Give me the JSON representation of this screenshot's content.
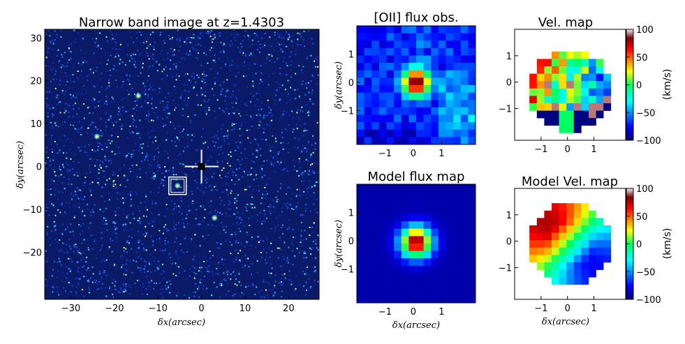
{
  "chart_data": [
    {
      "type": "heatmap",
      "title": "Narrow band image at z=1.4303",
      "xlabel": "δx(arcsec)",
      "ylabel": "δy(arcsec)",
      "xlim": [
        -36,
        27
      ],
      "ylim": [
        -31,
        32
      ],
      "xticks": [
        -30,
        -20,
        -10,
        0,
        10,
        20
      ],
      "yticks": [
        30,
        20,
        10,
        0,
        -10,
        -20
      ],
      "colormap": "jet",
      "background": "#0a1a66",
      "sources": [
        {
          "x": -14.5,
          "y": 16.5
        },
        {
          "x": -24,
          "y": 7
        },
        {
          "x": -5.5,
          "y": -4.5
        },
        {
          "x": 3,
          "y": -12
        }
      ],
      "cross_marker": {
        "x": 0,
        "y": 0
      },
      "box_marker": {
        "x": -5.5,
        "y": -4.5,
        "size": 4
      }
    },
    {
      "type": "heatmap",
      "title": "[OII] flux obs.",
      "ylabel": "δy(arcsec)",
      "xlim": [
        -2.0,
        2.2
      ],
      "ylim": [
        -2.2,
        2.0
      ],
      "xticks": [
        -1,
        0,
        1
      ],
      "yticks": [
        1,
        0,
        -1
      ],
      "colormap": "jet",
      "center": {
        "x": 0.1,
        "y": 0.0
      }
    },
    {
      "type": "heatmap",
      "title": "Vel. map",
      "xlim": [
        -2.0,
        2.2
      ],
      "ylim": [
        -2.2,
        2.0
      ],
      "xticks": [
        -1,
        0,
        1
      ],
      "yticks": [
        1,
        0,
        -1
      ],
      "colormap": "jet",
      "colorbar": {
        "label": "(km/s)",
        "min": -100,
        "max": 100,
        "ticks": [
          100,
          50,
          0,
          -50,
          -100
        ]
      }
    },
    {
      "type": "heatmap",
      "title": "Model flux map",
      "xlabel": "δx(arcsec)",
      "ylabel": "δy(arcsec)",
      "xlim": [
        -2.0,
        2.2
      ],
      "ylim": [
        -2.2,
        2.0
      ],
      "xticks": [
        -1,
        0,
        1
      ],
      "yticks": [
        1,
        0,
        -1
      ],
      "colormap": "jet"
    },
    {
      "type": "heatmap",
      "title": "Model Vel. map",
      "xlabel": "δx(arcsec)",
      "xlim": [
        -2.0,
        2.2
      ],
      "ylim": [
        -2.2,
        2.0
      ],
      "xticks": [
        -1,
        0,
        1
      ],
      "yticks": [
        1,
        0,
        -1
      ],
      "colormap": "jet",
      "colorbar": {
        "label": "(km/s)",
        "min": -100,
        "max": 100,
        "ticks": [
          100,
          50,
          0,
          -50,
          -100
        ]
      }
    }
  ]
}
